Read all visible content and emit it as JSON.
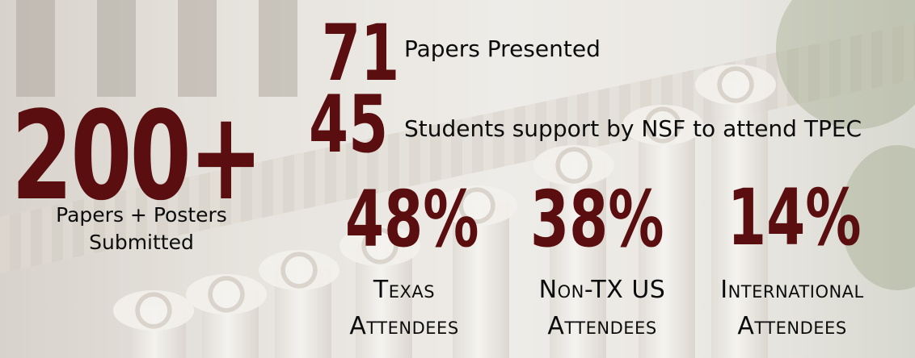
{
  "stats": {
    "submitted": {
      "number": "200+",
      "label_line1": "Papers + Posters",
      "label_line2": "Submitted"
    },
    "presented": {
      "number": "71",
      "label": "Papers Presented"
    },
    "nsf": {
      "number": "45",
      "label": "Students support by NSF to attend TPEC"
    },
    "texas": {
      "number": "48%",
      "label_line1": "Texas",
      "label_line2": "Attendees"
    },
    "non_tx": {
      "number": "38%",
      "label_line1": "Non-TX US",
      "label_line2": "Attendees"
    },
    "international": {
      "number": "14%",
      "label_line1": "International",
      "label_line2": "Attendees"
    }
  },
  "colors": {
    "accent": "#5a0e0f",
    "text": "#0c0c0c"
  }
}
